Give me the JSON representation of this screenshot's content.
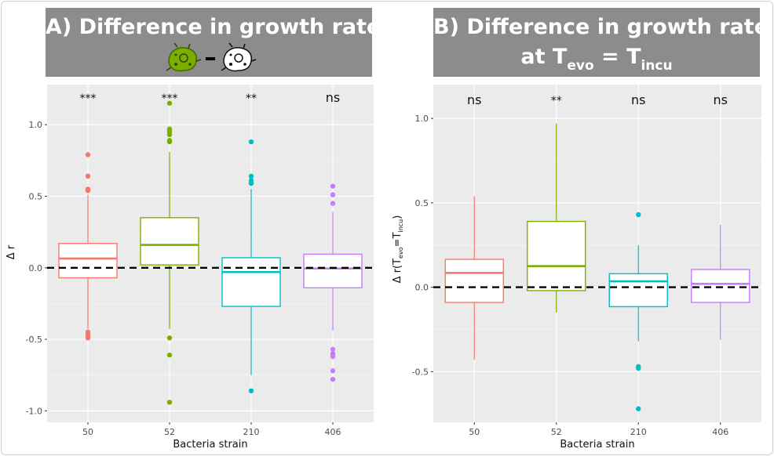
{
  "panel_a": {
    "title": "A) Difference in growth rate",
    "bacteria_icons": [
      "evolved-bacterium-icon",
      "ancestral-bacterium-icon"
    ],
    "colors": {
      "bg": "#8c8c8c",
      "panel_bg": "#ebebeb"
    }
  },
  "panel_b": {
    "title_line1": "B)  Difference in growth rate",
    "title_line2_prefix": "at T",
    "title_sub1": "evo",
    "title_eq": " = T",
    "title_sub2": "incu"
  },
  "chart_data": [
    {
      "type": "box",
      "title": "A) Difference in growth rate",
      "xlabel": "Bacteria strain",
      "ylabel": "Δ r",
      "ylim": [
        -1.08,
        1.28
      ],
      "yticks": [
        -1.0,
        -0.5,
        0.0,
        0.5,
        1.0
      ],
      "ytick_labels": [
        "-1.0",
        "-0.5",
        "0.0",
        "0.5",
        "1.0"
      ],
      "reference_line": 0,
      "categories": [
        "50",
        "52",
        "210",
        "406"
      ],
      "colors": [
        "#f8766d",
        "#7cae00",
        "#00bfc4",
        "#c77cff"
      ],
      "significance": [
        "***",
        "***",
        "**",
        "ns"
      ],
      "boxes": [
        {
          "q1": -0.07,
          "median": 0.065,
          "q3": 0.17,
          "whisker_low": -0.43,
          "whisker_high": 0.51,
          "outliers": [
            0.79,
            0.64,
            0.55,
            0.54,
            -0.45,
            -0.47,
            -0.49
          ]
        },
        {
          "q1": 0.02,
          "median": 0.16,
          "q3": 0.35,
          "whisker_low": -0.43,
          "whisker_high": 0.81,
          "outliers": [
            1.15,
            0.97,
            0.96,
            0.95,
            0.93,
            0.89,
            0.88,
            -0.49,
            -0.61,
            -0.94
          ]
        },
        {
          "q1": -0.27,
          "median": -0.03,
          "q3": 0.07,
          "whisker_low": -0.75,
          "whisker_high": 0.55,
          "outliers": [
            0.88,
            0.64,
            0.61,
            0.59,
            -0.86
          ]
        },
        {
          "q1": -0.14,
          "median": -0.005,
          "q3": 0.095,
          "whisker_low": -0.44,
          "whisker_high": 0.39,
          "outliers": [
            0.57,
            0.51,
            0.45,
            -0.57,
            -0.6,
            -0.62,
            -0.72,
            -0.78
          ]
        }
      ]
    },
    {
      "type": "box",
      "title": "B) Difference in growth rate at Tevo = Tincu",
      "xlabel": "Bacteria strain",
      "ylabel": "Δ r(Tevo=Tincu)",
      "ylim": [
        -0.8,
        1.2
      ],
      "yticks": [
        -0.5,
        0.0,
        0.5,
        1.0
      ],
      "ytick_labels": [
        "-0.5",
        "0.0",
        "0.5",
        "1.0"
      ],
      "reference_line": 0,
      "categories": [
        "50",
        "52",
        "210",
        "406"
      ],
      "colors": [
        "#f8766d",
        "#7cae00",
        "#00bfc4",
        "#c77cff"
      ],
      "significance": [
        "ns",
        "**",
        "ns",
        "ns"
      ],
      "boxes": [
        {
          "q1": -0.09,
          "median": 0.085,
          "q3": 0.165,
          "whisker_low": -0.43,
          "whisker_high": 0.54,
          "outliers": []
        },
        {
          "q1": -0.02,
          "median": 0.125,
          "q3": 0.39,
          "whisker_low": -0.15,
          "whisker_high": 0.97,
          "outliers": []
        },
        {
          "q1": -0.115,
          "median": 0.035,
          "q3": 0.08,
          "whisker_low": -0.32,
          "whisker_high": 0.25,
          "outliers": [
            0.43,
            -0.47,
            -0.48,
            -0.72
          ]
        },
        {
          "q1": -0.09,
          "median": 0.02,
          "q3": 0.105,
          "whisker_low": -0.31,
          "whisker_high": 0.37,
          "outliers": []
        }
      ]
    }
  ]
}
